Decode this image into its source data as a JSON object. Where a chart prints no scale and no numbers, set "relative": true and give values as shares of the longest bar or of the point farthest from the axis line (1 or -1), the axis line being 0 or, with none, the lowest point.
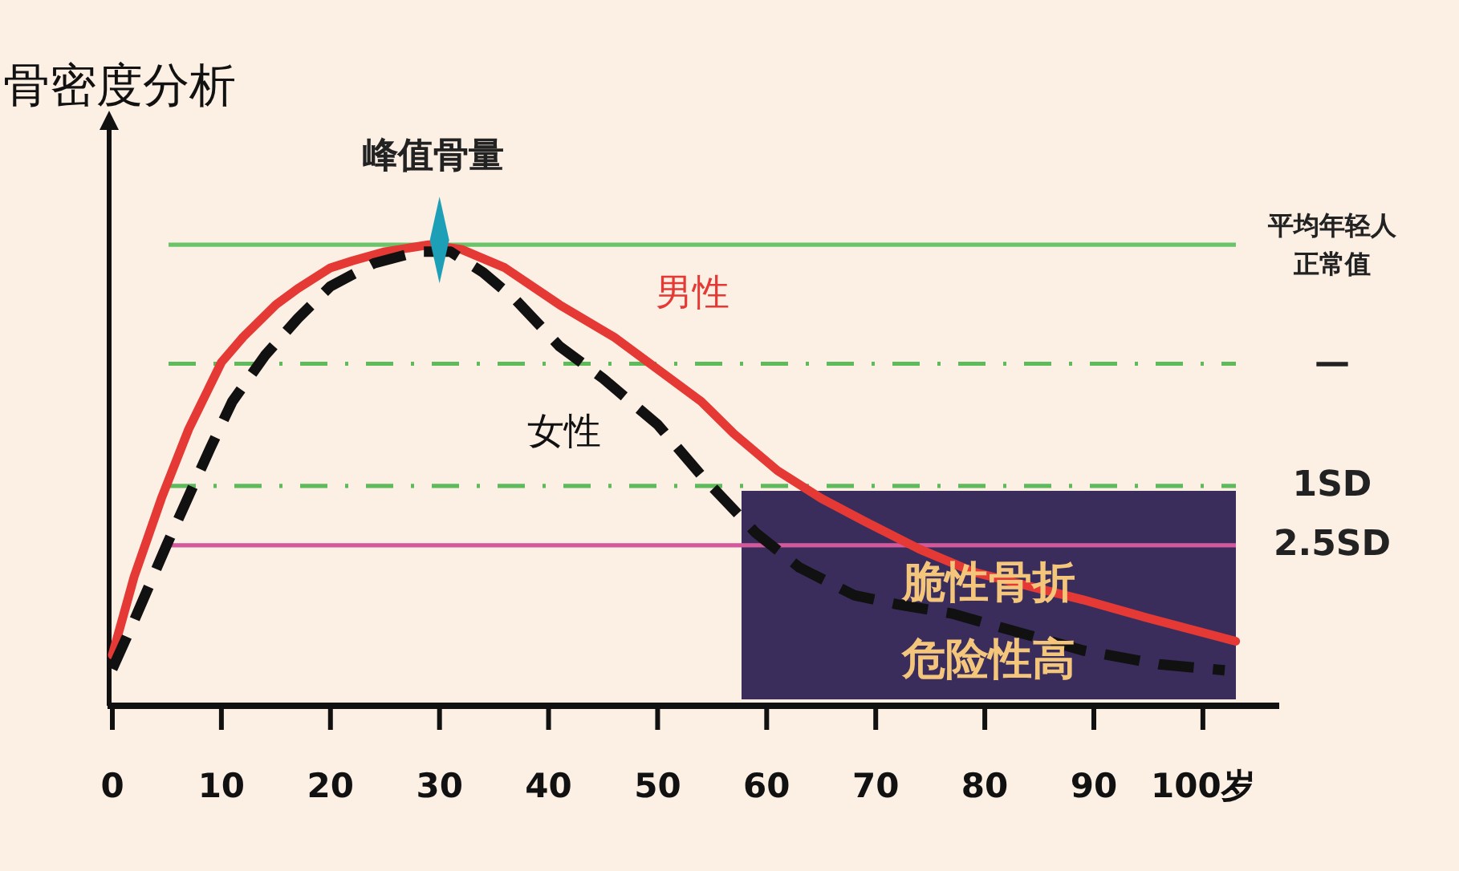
{
  "chart_data": {
    "type": "line",
    "title": "骨密度分析",
    "relative": true,
    "xlim": [
      0,
      107
    ],
    "xticks": [
      0,
      10,
      20,
      30,
      40,
      50,
      60,
      70,
      80,
      90,
      {
        "value": 100,
        "label": "100岁"
      }
    ],
    "series": [
      {
        "name": "男性",
        "color": "#e53935",
        "line_style": "solid",
        "x": [
          0,
          2,
          4.5,
          7,
          10,
          12,
          15,
          17,
          20,
          22,
          25,
          29,
          32,
          36,
          41,
          46,
          50,
          54,
          57,
          61,
          65,
          69,
          74,
          79,
          84,
          89,
          95,
          103
        ],
        "values": [
          0.11,
          0.28,
          0.45,
          0.6,
          0.745,
          0.8,
          0.87,
          0.905,
          0.95,
          0.965,
          0.985,
          1,
          0.99,
          0.95,
          0.87,
          0.8,
          0.73,
          0.66,
          0.59,
          0.51,
          0.45,
          0.4,
          0.34,
          0.29,
          0.26,
          0.23,
          0.19,
          0.14
        ]
      },
      {
        "name": "女性",
        "color": "#111111",
        "line_style": "dashed",
        "x": [
          0,
          2,
          5,
          9,
          11,
          14,
          17,
          20,
          24,
          28,
          31,
          34,
          37,
          41,
          45,
          50,
          54,
          59,
          63,
          68,
          72,
          77,
          83,
          89,
          96,
          102
        ],
        "values": [
          0.08,
          0.185,
          0.35,
          0.56,
          0.66,
          0.76,
          0.84,
          0.91,
          0.96,
          0.985,
          0.985,
          0.94,
          0.88,
          0.78,
          0.71,
          0.61,
          0.5,
          0.375,
          0.3,
          0.24,
          0.22,
          0.2,
          0.16,
          0.12,
          0.09,
          0.077
        ]
      }
    ],
    "ref_lines": [
      {
        "axis": "y",
        "value": 1,
        "label": "平均年轻人正常值",
        "color": "#6cc46a",
        "line_style": "solid"
      },
      {
        "axis": "y",
        "value": 0.742,
        "label": "—",
        "color": "#5dbb5b",
        "line_style": "dashdot"
      },
      {
        "axis": "y",
        "value": 0.477,
        "label": "1SD",
        "color": "#5dbb5b",
        "line_style": "dashdot"
      },
      {
        "axis": "y",
        "value": 0.348,
        "label": "2.5SD",
        "color": "#d4589c",
        "line_style": "solid"
      }
    ],
    "annotations": [
      "脆性骨折危险性高",
      {
        "text": "峰值骨量",
        "x": 30,
        "y": 1
      }
    ]
  }
}
